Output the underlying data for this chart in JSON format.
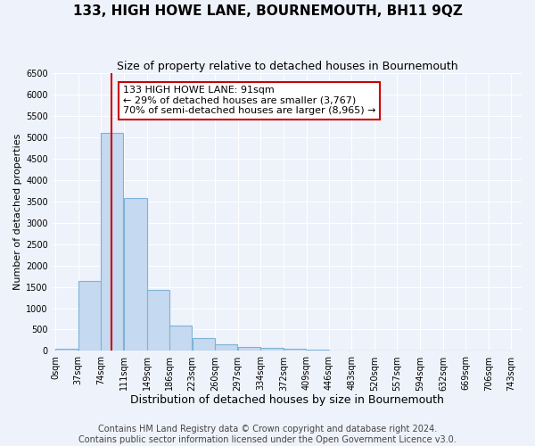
{
  "title": "133, HIGH HOWE LANE, BOURNEMOUTH, BH11 9QZ",
  "subtitle": "Size of property relative to detached houses in Bournemouth",
  "xlabel": "Distribution of detached houses by size in Bournemouth",
  "ylabel": "Number of detached properties",
  "footer_lines": [
    "Contains HM Land Registry data © Crown copyright and database right 2024.",
    "Contains public sector information licensed under the Open Government Licence v3.0."
  ],
  "bin_edges": [
    0,
    37,
    74,
    111,
    149,
    186,
    223,
    260,
    297,
    334,
    372,
    409,
    446,
    483,
    520,
    557,
    594,
    632,
    669,
    706,
    743
  ],
  "bin_counts": [
    50,
    1640,
    5100,
    3580,
    1420,
    590,
    300,
    150,
    100,
    80,
    50,
    30,
    0,
    0,
    0,
    0,
    0,
    0,
    0,
    0
  ],
  "bar_color": "#c5d9f0",
  "bar_edge_color": "#7eb3d8",
  "red_line_x": 91,
  "annotation_title": "133 HIGH HOWE LANE: 91sqm",
  "annotation_line1": "← 29% of detached houses are smaller (3,767)",
  "annotation_line2": "70% of semi-detached houses are larger (8,965) →",
  "annotation_box_color": "#ffffff",
  "annotation_box_edge": "#cc0000",
  "red_line_color": "#cc0000",
  "ylim": [
    0,
    6500
  ],
  "yticks": [
    0,
    500,
    1000,
    1500,
    2000,
    2500,
    3000,
    3500,
    4000,
    4500,
    5000,
    5500,
    6000,
    6500
  ],
  "background_color": "#eef2fa",
  "grid_color": "#ffffff",
  "title_fontsize": 11,
  "subtitle_fontsize": 9,
  "xlabel_fontsize": 9,
  "ylabel_fontsize": 8,
  "tick_fontsize": 7,
  "annotation_fontsize": 8,
  "footer_fontsize": 7
}
